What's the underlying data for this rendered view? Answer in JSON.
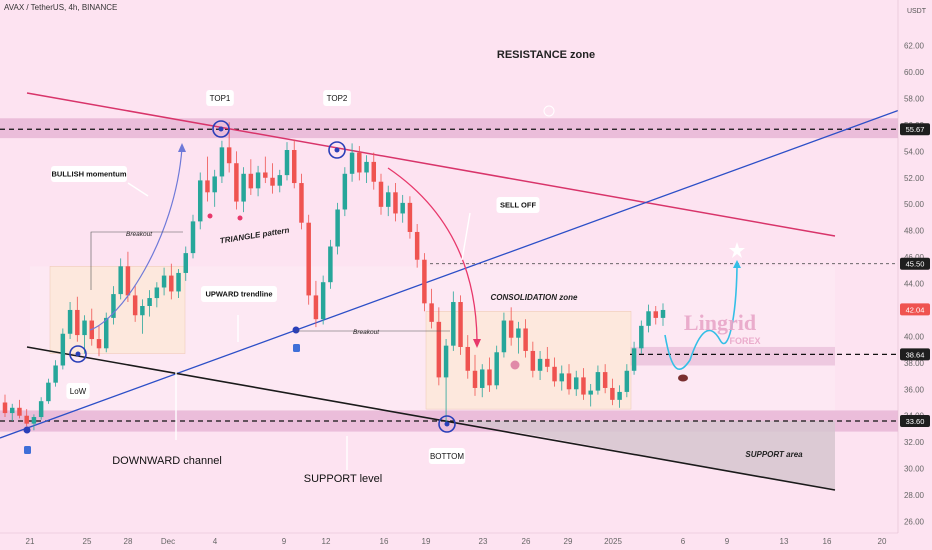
{
  "header": {
    "title": "AVAX / TetherUS, 4h, BINANCE"
  },
  "price_axis": {
    "currency": "USDT"
  },
  "colors": {
    "background": "#fde3f1",
    "zone": "#e8b6d6",
    "up": "#26a69a",
    "down": "#ef5350",
    "trendline_blue": "#2c4fc7",
    "trendline_red": "#d8346a",
    "channel_black": "#1a1a1a"
  },
  "chart_data": {
    "type": "candlestick",
    "ylim": [
      25,
      64
    ],
    "y_ticks": [
      "62.00",
      "60.00",
      "58.00",
      "56.00",
      "54.00",
      "52.00",
      "50.00",
      "48.00",
      "46.00",
      "44.00",
      "42.00",
      "40.00",
      "38.00",
      "36.00",
      "34.00",
      "32.00",
      "30.00",
      "28.00",
      "26.00"
    ],
    "x_tick_labels": [
      "21",
      "25",
      "28",
      "Dec",
      "4",
      "9",
      "12",
      "16",
      "19",
      "23",
      "26",
      "29",
      "2025",
      "6",
      "9",
      "13",
      "16",
      "20"
    ],
    "price_labels": [
      {
        "value": 55.67,
        "text": "55.67",
        "style": "dark"
      },
      {
        "value": 45.5,
        "text": "45.50",
        "style": "dark"
      },
      {
        "value": 42.04,
        "text": "42.04",
        "style": "red"
      },
      {
        "value": 38.64,
        "text": "38.64",
        "style": "dark"
      },
      {
        "value": 33.6,
        "text": "33.60",
        "style": "dark"
      }
    ],
    "resistance_zone": [
      55.0,
      56.5
    ],
    "support_zone_band": [
      32.8,
      34.4
    ],
    "mid_zone_band": [
      37.8,
      39.2
    ],
    "horizontal_levels": [
      55.67,
      45.5,
      38.64,
      33.6
    ],
    "candles": [
      {
        "o": 35.0,
        "h": 35.6,
        "l": 33.9,
        "c": 34.2
      },
      {
        "o": 34.2,
        "h": 34.9,
        "l": 33.6,
        "c": 34.6
      },
      {
        "o": 34.6,
        "h": 35.2,
        "l": 33.8,
        "c": 34.0
      },
      {
        "o": 34.0,
        "h": 34.5,
        "l": 33.2,
        "c": 33.4
      },
      {
        "o": 33.4,
        "h": 34.1,
        "l": 32.9,
        "c": 33.9
      },
      {
        "o": 33.9,
        "h": 35.4,
        "l": 33.7,
        "c": 35.1
      },
      {
        "o": 35.1,
        "h": 36.8,
        "l": 34.9,
        "c": 36.5
      },
      {
        "o": 36.5,
        "h": 38.2,
        "l": 36.2,
        "c": 37.8
      },
      {
        "o": 37.8,
        "h": 40.6,
        "l": 37.5,
        "c": 40.2
      },
      {
        "o": 40.2,
        "h": 42.6,
        "l": 39.8,
        "c": 42.0
      },
      {
        "o": 42.0,
        "h": 43.0,
        "l": 39.6,
        "c": 40.1
      },
      {
        "o": 40.1,
        "h": 41.6,
        "l": 38.7,
        "c": 41.2
      },
      {
        "o": 41.2,
        "h": 42.1,
        "l": 39.3,
        "c": 39.8
      },
      {
        "o": 39.8,
        "h": 40.8,
        "l": 38.5,
        "c": 39.1
      },
      {
        "o": 39.1,
        "h": 41.8,
        "l": 38.8,
        "c": 41.4
      },
      {
        "o": 41.4,
        "h": 43.8,
        "l": 40.9,
        "c": 43.2
      },
      {
        "o": 43.2,
        "h": 45.9,
        "l": 42.8,
        "c": 45.3
      },
      {
        "o": 45.3,
        "h": 46.4,
        "l": 42.6,
        "c": 43.1
      },
      {
        "o": 43.1,
        "h": 43.9,
        "l": 41.1,
        "c": 41.6
      },
      {
        "o": 41.6,
        "h": 42.8,
        "l": 40.2,
        "c": 42.3
      },
      {
        "o": 42.3,
        "h": 43.5,
        "l": 41.5,
        "c": 42.9
      },
      {
        "o": 42.9,
        "h": 44.1,
        "l": 42.2,
        "c": 43.7
      },
      {
        "o": 43.7,
        "h": 45.2,
        "l": 43.1,
        "c": 44.6
      },
      {
        "o": 44.6,
        "h": 45.5,
        "l": 42.8,
        "c": 43.4
      },
      {
        "o": 43.4,
        "h": 45.1,
        "l": 42.9,
        "c": 44.8
      },
      {
        "o": 44.8,
        "h": 46.8,
        "l": 44.2,
        "c": 46.3
      },
      {
        "o": 46.3,
        "h": 49.2,
        "l": 45.9,
        "c": 48.7
      },
      {
        "o": 48.7,
        "h": 52.4,
        "l": 48.1,
        "c": 51.8
      },
      {
        "o": 51.8,
        "h": 53.6,
        "l": 50.2,
        "c": 50.9
      },
      {
        "o": 50.9,
        "h": 52.6,
        "l": 49.8,
        "c": 52.1
      },
      {
        "o": 52.1,
        "h": 54.8,
        "l": 51.6,
        "c": 54.3
      },
      {
        "o": 54.3,
        "h": 56.2,
        "l": 52.4,
        "c": 53.1
      },
      {
        "o": 53.1,
        "h": 54.0,
        "l": 49.6,
        "c": 50.2
      },
      {
        "o": 50.2,
        "h": 52.8,
        "l": 49.4,
        "c": 52.3
      },
      {
        "o": 52.3,
        "h": 53.4,
        "l": 50.7,
        "c": 51.2
      },
      {
        "o": 51.2,
        "h": 52.9,
        "l": 50.6,
        "c": 52.4
      },
      {
        "o": 52.4,
        "h": 53.6,
        "l": 51.6,
        "c": 52.0
      },
      {
        "o": 52.0,
        "h": 53.1,
        "l": 50.8,
        "c": 51.4
      },
      {
        "o": 51.4,
        "h": 52.6,
        "l": 50.9,
        "c": 52.2
      },
      {
        "o": 52.2,
        "h": 54.7,
        "l": 51.8,
        "c": 54.1
      },
      {
        "o": 54.1,
        "h": 54.9,
        "l": 51.2,
        "c": 51.6
      },
      {
        "o": 51.6,
        "h": 52.3,
        "l": 48.1,
        "c": 48.6
      },
      {
        "o": 48.6,
        "h": 49.2,
        "l": 42.4,
        "c": 43.1
      },
      {
        "o": 43.1,
        "h": 44.2,
        "l": 40.7,
        "c": 41.3
      },
      {
        "o": 41.3,
        "h": 44.6,
        "l": 40.9,
        "c": 44.1
      },
      {
        "o": 44.1,
        "h": 47.3,
        "l": 43.6,
        "c": 46.8
      },
      {
        "o": 46.8,
        "h": 50.1,
        "l": 46.2,
        "c": 49.6
      },
      {
        "o": 49.6,
        "h": 52.8,
        "l": 49.1,
        "c": 52.3
      },
      {
        "o": 52.3,
        "h": 54.6,
        "l": 51.7,
        "c": 53.9
      },
      {
        "o": 53.9,
        "h": 54.4,
        "l": 51.8,
        "c": 52.4
      },
      {
        "o": 52.4,
        "h": 53.7,
        "l": 51.6,
        "c": 53.2
      },
      {
        "o": 53.2,
        "h": 53.9,
        "l": 51.1,
        "c": 51.7
      },
      {
        "o": 51.7,
        "h": 52.3,
        "l": 49.2,
        "c": 49.8
      },
      {
        "o": 49.8,
        "h": 51.4,
        "l": 49.1,
        "c": 50.9
      },
      {
        "o": 50.9,
        "h": 51.6,
        "l": 48.7,
        "c": 49.3
      },
      {
        "o": 49.3,
        "h": 50.7,
        "l": 48.6,
        "c": 50.1
      },
      {
        "o": 50.1,
        "h": 50.6,
        "l": 47.4,
        "c": 47.9
      },
      {
        "o": 47.9,
        "h": 48.5,
        "l": 45.2,
        "c": 45.8
      },
      {
        "o": 45.8,
        "h": 46.3,
        "l": 41.9,
        "c": 42.5
      },
      {
        "o": 42.5,
        "h": 43.6,
        "l": 40.6,
        "c": 41.1
      },
      {
        "o": 41.1,
        "h": 42.2,
        "l": 36.3,
        "c": 36.9
      },
      {
        "o": 36.9,
        "h": 39.8,
        "l": 33.4,
        "c": 39.3
      },
      {
        "o": 39.3,
        "h": 43.4,
        "l": 38.9,
        "c": 42.6
      },
      {
        "o": 42.6,
        "h": 43.1,
        "l": 38.6,
        "c": 39.2
      },
      {
        "o": 39.2,
        "h": 40.1,
        "l": 36.8,
        "c": 37.4
      },
      {
        "o": 37.4,
        "h": 38.6,
        "l": 35.5,
        "c": 36.1
      },
      {
        "o": 36.1,
        "h": 37.9,
        "l": 35.4,
        "c": 37.5
      },
      {
        "o": 37.5,
        "h": 38.4,
        "l": 35.8,
        "c": 36.3
      },
      {
        "o": 36.3,
        "h": 39.3,
        "l": 36.0,
        "c": 38.8
      },
      {
        "o": 38.8,
        "h": 41.8,
        "l": 38.4,
        "c": 41.2
      },
      {
        "o": 41.2,
        "h": 42.2,
        "l": 39.3,
        "c": 39.9
      },
      {
        "o": 39.9,
        "h": 41.1,
        "l": 38.7,
        "c": 40.6
      },
      {
        "o": 40.6,
        "h": 41.3,
        "l": 38.4,
        "c": 38.9
      },
      {
        "o": 38.9,
        "h": 39.6,
        "l": 36.9,
        "c": 37.4
      },
      {
        "o": 37.4,
        "h": 38.9,
        "l": 36.7,
        "c": 38.3
      },
      {
        "o": 38.3,
        "h": 39.2,
        "l": 37.3,
        "c": 37.7
      },
      {
        "o": 37.7,
        "h": 38.4,
        "l": 36.2,
        "c": 36.6
      },
      {
        "o": 36.6,
        "h": 37.8,
        "l": 35.9,
        "c": 37.2
      },
      {
        "o": 37.2,
        "h": 37.9,
        "l": 35.6,
        "c": 36.0
      },
      {
        "o": 36.0,
        "h": 37.4,
        "l": 35.5,
        "c": 36.9
      },
      {
        "o": 36.9,
        "h": 37.6,
        "l": 35.2,
        "c": 35.6
      },
      {
        "o": 35.6,
        "h": 36.4,
        "l": 34.7,
        "c": 35.9
      },
      {
        "o": 35.9,
        "h": 37.8,
        "l": 35.6,
        "c": 37.3
      },
      {
        "o": 37.3,
        "h": 37.9,
        "l": 35.7,
        "c": 36.1
      },
      {
        "o": 36.1,
        "h": 36.8,
        "l": 34.8,
        "c": 35.2
      },
      {
        "o": 35.2,
        "h": 36.3,
        "l": 34.6,
        "c": 35.8
      },
      {
        "o": 35.8,
        "h": 37.9,
        "l": 35.4,
        "c": 37.4
      },
      {
        "o": 37.4,
        "h": 39.6,
        "l": 37.1,
        "c": 39.1
      },
      {
        "o": 39.1,
        "h": 41.2,
        "l": 38.7,
        "c": 40.8
      },
      {
        "o": 40.8,
        "h": 42.4,
        "l": 40.3,
        "c": 41.9
      },
      {
        "o": 41.9,
        "h": 42.3,
        "l": 40.9,
        "c": 41.4
      },
      {
        "o": 41.4,
        "h": 42.5,
        "l": 40.8,
        "c": 42.0
      }
    ],
    "annotations": {
      "resistance": "RESISTANCE zone",
      "top1": "TOP1",
      "top2": "TOP2",
      "bullish": "BULLISH momentum",
      "breakout1": "Breakout",
      "triangle": "TRIANGLE pattern",
      "selloff": "SELL OFF",
      "upward": "UPWARD trendline",
      "breakout2": "Breakout",
      "consolidation": "CONSOLIDATION zone",
      "low": "LoW",
      "downward": "DOWNWARD channel",
      "bottom": "BOTTOM",
      "support_area": "SUPPORT area",
      "support_level": "SUPPORT level"
    },
    "watermark": {
      "name": "Lingrid",
      "sub": "FOREX"
    }
  }
}
